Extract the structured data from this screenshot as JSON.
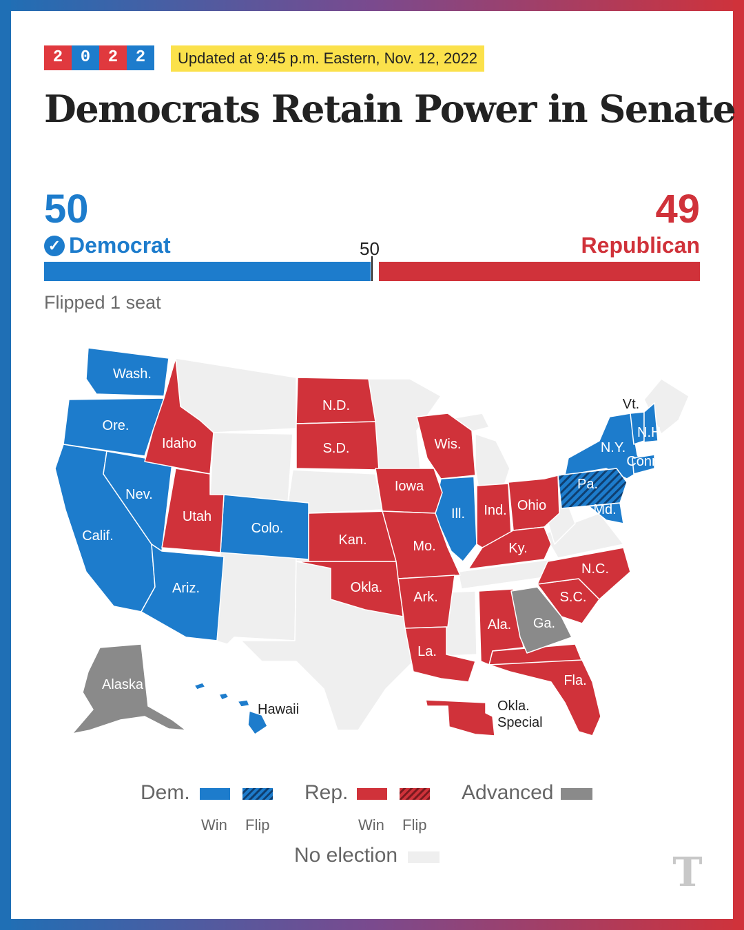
{
  "badge": {
    "digits": [
      "2",
      "0",
      "2",
      "2"
    ]
  },
  "updated": "Updated at 9:45 p.m. Eastern, Nov. 12, 2022",
  "headline": "Democrats Retain Power in Senate",
  "tally": {
    "dem_seats": "50",
    "dem_label": "Democrat",
    "rep_seats": "49",
    "rep_label": "Republican",
    "majority_marker": "50",
    "flipped": "Flipped 1 seat"
  },
  "colors": {
    "dem": "#1d7ccc",
    "rep": "#d0323a",
    "advanced": "#8a8a8a",
    "no_election": "#efefef"
  },
  "states": {
    "wash": "Wash.",
    "ore": "Ore.",
    "calif": "Calif.",
    "nev": "Nev.",
    "idaho": "Idaho",
    "utah": "Utah",
    "ariz": "Ariz.",
    "colo": "Colo.",
    "nd": "N.D.",
    "sd": "S.D.",
    "kan": "Kan.",
    "okla": "Okla.",
    "iowa": "Iowa",
    "mo": "Mo.",
    "ark": "Ark.",
    "la": "La.",
    "wis": "Wis.",
    "ill": "Ill.",
    "ind": "Ind.",
    "ohio": "Ohio",
    "ky": "Ky.",
    "ala": "Ala.",
    "ga": "Ga.",
    "fla": "Fla.",
    "sc": "S.C.",
    "nc": "N.C.",
    "pa": "Pa.",
    "md": "Md.",
    "ny": "N.Y.",
    "conn": "Conn.",
    "vt": "Vt.",
    "nh": "N.H.",
    "alaska": "Alaska",
    "hawaii": "Hawaii",
    "okla_special": [
      "Okla.",
      "Special"
    ]
  },
  "legend": {
    "dem": "Dem.",
    "rep": "Rep.",
    "win": "Win",
    "flip": "Flip",
    "advanced": "Advanced",
    "no_election": "No election"
  },
  "logo": "T"
}
